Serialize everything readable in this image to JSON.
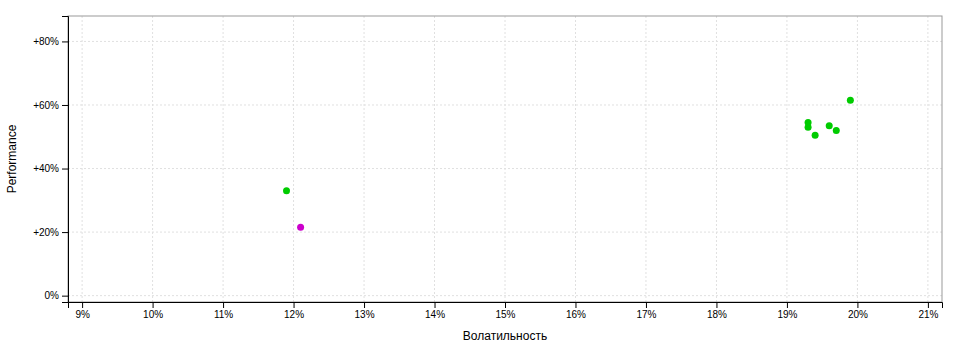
{
  "chart_data": {
    "type": "scatter",
    "xlabel": "Волатильность",
    "ylabel": "Performance",
    "xlim": [
      0.088,
      0.212
    ],
    "ylim": [
      -0.02,
      0.88
    ],
    "xticks": [
      {
        "value": 0.09,
        "label": "9%"
      },
      {
        "value": 0.1,
        "label": "10%"
      },
      {
        "value": 0.11,
        "label": "11%"
      },
      {
        "value": 0.12,
        "label": "12%"
      },
      {
        "value": 0.13,
        "label": "13%"
      },
      {
        "value": 0.14,
        "label": "14%"
      },
      {
        "value": 0.15,
        "label": "15%"
      },
      {
        "value": 0.16,
        "label": "16%"
      },
      {
        "value": 0.17,
        "label": "17%"
      },
      {
        "value": 0.18,
        "label": "18%"
      },
      {
        "value": 0.19,
        "label": "19%"
      },
      {
        "value": 0.2,
        "label": "20%"
      },
      {
        "value": 0.21,
        "label": "21%"
      }
    ],
    "yticks": [
      {
        "value": 0.0,
        "label": "0%"
      },
      {
        "value": 0.2,
        "label": "+20%"
      },
      {
        "value": 0.4,
        "label": "+40%"
      },
      {
        "value": 0.6,
        "label": "+60%"
      },
      {
        "value": 0.8,
        "label": "+80%"
      }
    ],
    "grid": true,
    "series": [
      {
        "color": "#00cc00",
        "x": [
          0.119,
          0.193,
          0.193,
          0.196,
          0.197,
          0.194,
          0.199
        ],
        "values": [
          0.33,
          0.545,
          0.53,
          0.535,
          0.52,
          0.505,
          0.615
        ]
      },
      {
        "color": "#cc00cc",
        "x": [
          0.121
        ],
        "values": [
          0.215
        ]
      }
    ]
  }
}
